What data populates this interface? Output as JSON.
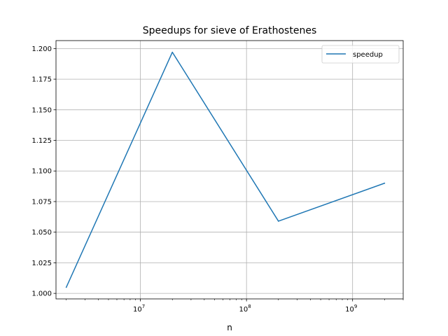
{
  "chart_data": {
    "type": "line",
    "title": "Speedups for sieve of Erathostenes",
    "xlabel": "n",
    "ylabel": "",
    "xscale": "log",
    "xlim": [
      1600000,
      3000000000
    ],
    "ylim": [
      0.9955,
      1.2065
    ],
    "grid": true,
    "legend_position": "upper right",
    "x_ticks": [
      {
        "value": 10000000,
        "base": "10",
        "exp": "7"
      },
      {
        "value": 100000000,
        "base": "10",
        "exp": "8"
      },
      {
        "value": 1000000000,
        "base": "10",
        "exp": "9"
      }
    ],
    "y_ticks": [
      "1.000",
      "1.025",
      "1.050",
      "1.075",
      "1.100",
      "1.125",
      "1.150",
      "1.175",
      "1.200"
    ],
    "x": [
      2000000,
      20000000,
      200000000,
      2000000000
    ],
    "series": [
      {
        "name": "speedup",
        "color": "#1f77b4",
        "values": [
          1.005,
          1.197,
          1.059,
          1.09
        ]
      }
    ]
  }
}
